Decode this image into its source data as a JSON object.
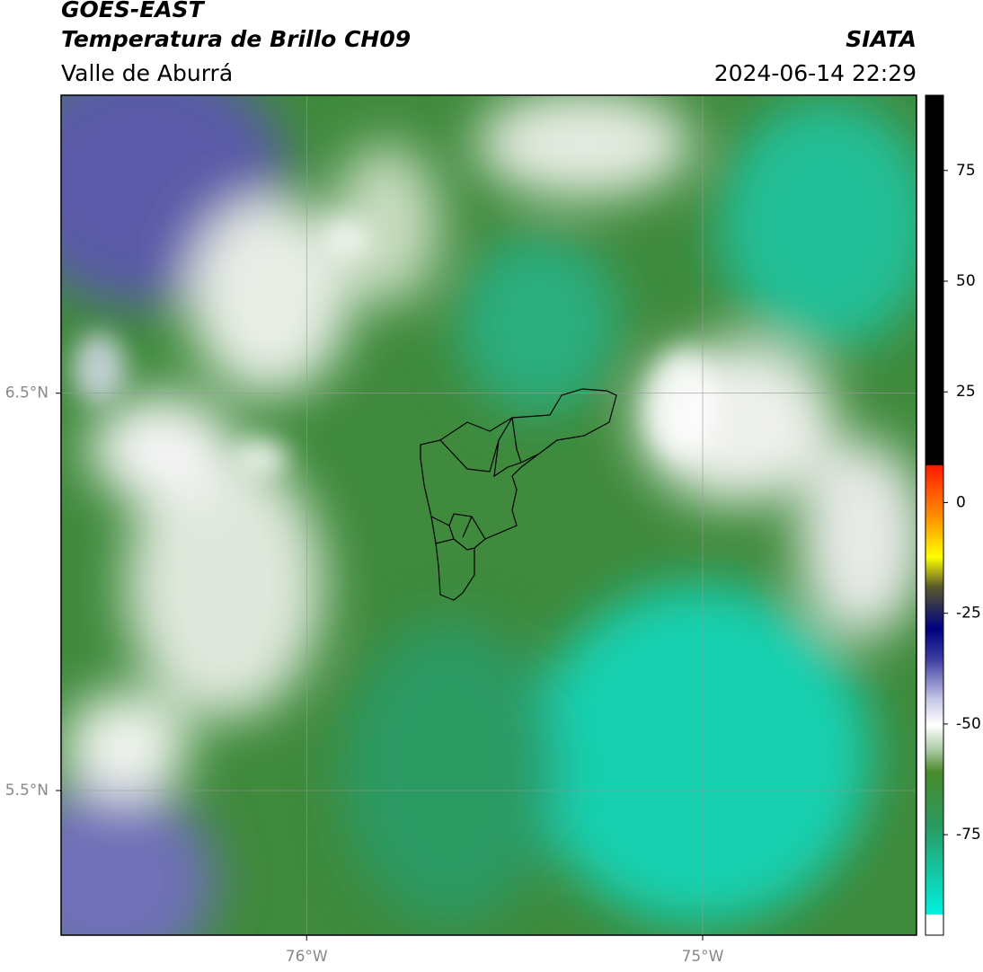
{
  "header": {
    "title": "GOES-EAST",
    "subtitle": "Temperatura de Brillo CH09",
    "region": "Valle de Aburrá",
    "source": "SIATA",
    "timestamp": "2024-06-14 22:29"
  },
  "map": {
    "xlim": [
      -76.62,
      -74.46
    ],
    "ylim": [
      5.136,
      7.25
    ],
    "xticks": [
      {
        "value": -76,
        "label": "76°W"
      },
      {
        "value": -75,
        "label": "75°W"
      }
    ],
    "yticks": [
      {
        "value": 6.5,
        "label": "6.5°N"
      },
      {
        "value": 5.5,
        "label": "5.5°N"
      }
    ],
    "grid": true
  },
  "colorbar": {
    "lim": [
      -97.7,
      92
    ],
    "ticks": [
      75,
      50,
      25,
      0,
      -25,
      -50,
      -75
    ]
  }
}
